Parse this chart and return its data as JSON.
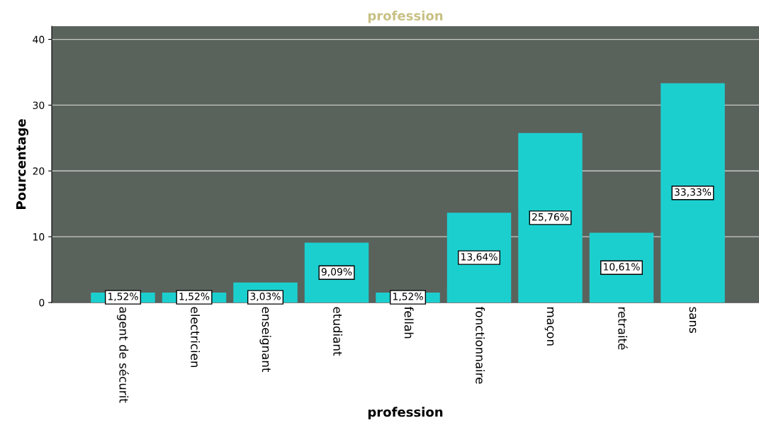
{
  "chart_data": {
    "type": "bar",
    "title": "profession",
    "xlabel": "profession",
    "ylabel": "Pourcentage",
    "categories": [
      "agent de sécurit",
      "electricien",
      "enseignant",
      "etudiant",
      "fellah",
      "fonctionnaire",
      "maçon",
      "retraité",
      "sans"
    ],
    "values": [
      1.52,
      1.52,
      3.03,
      9.09,
      1.52,
      13.64,
      25.76,
      10.61,
      33.33
    ],
    "value_labels": [
      "1,52%",
      "1,52%",
      "3,03%",
      "9,09%",
      "1,52%",
      "13,64%",
      "25,76%",
      "10,61%",
      "33,33%"
    ],
    "color": "#1ccfcf",
    "ylim": [
      0,
      42
    ],
    "yticks": [
      0,
      10,
      20,
      30,
      40
    ],
    "grid": "y"
  }
}
